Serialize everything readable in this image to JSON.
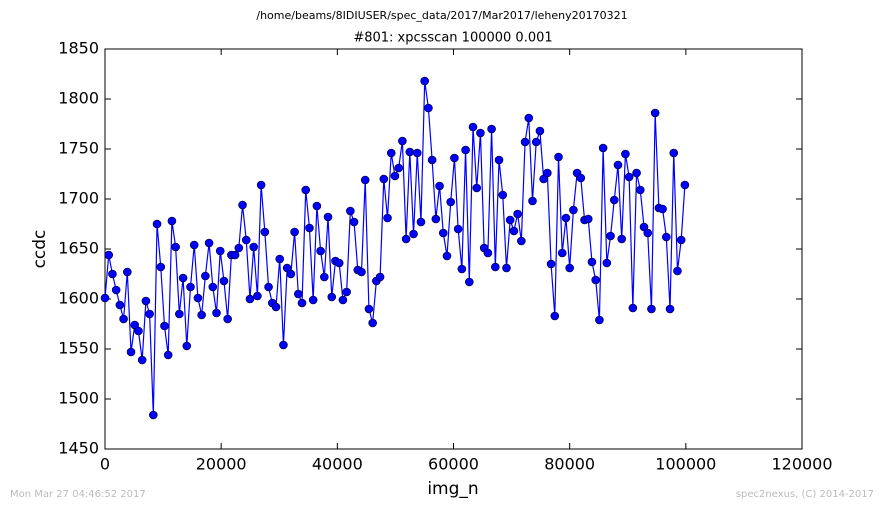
{
  "chart_data": {
    "type": "line",
    "suptitle": "/home/beams/8IDIUSER/spec_data/2017/Mar2017/leheny20170321",
    "title": "#801: xpcsscan 100000 0.001",
    "xlabel": "img_n",
    "ylabel": "ccdc",
    "footer_left": "Mon Mar 27 04:46:52 2017",
    "footer_right": "spec2nexus, (C) 2014-2017",
    "xlim": [
      0,
      120000
    ],
    "ylim": [
      1450,
      1850
    ],
    "xticks": [
      0,
      20000,
      40000,
      60000,
      80000,
      100000,
      120000
    ],
    "yticks": [
      1450,
      1500,
      1550,
      1600,
      1650,
      1700,
      1750,
      1800,
      1850
    ],
    "grid": false,
    "x": [
      0,
      640,
      1280,
      1920,
      2560,
      3200,
      3840,
      4480,
      5120,
      5760,
      6400,
      7040,
      7680,
      8320,
      8960,
      9600,
      10240,
      10880,
      11520,
      12160,
      12800,
      13440,
      14080,
      14720,
      15360,
      16000,
      16640,
      17280,
      17920,
      18560,
      19200,
      19840,
      20480,
      21120,
      21760,
      22400,
      23040,
      23680,
      24320,
      24960,
      25600,
      26240,
      26880,
      27520,
      28160,
      28800,
      29440,
      30080,
      30720,
      31360,
      32000,
      32640,
      33280,
      33920,
      34560,
      35200,
      35840,
      36480,
      37120,
      37760,
      38400,
      39040,
      39680,
      40320,
      40960,
      41600,
      42240,
      42880,
      43520,
      44160,
      44800,
      45440,
      46080,
      46720,
      47360,
      48000,
      48640,
      49280,
      49920,
      50560,
      51200,
      51840,
      52480,
      53120,
      53760,
      54400,
      55040,
      55680,
      56320,
      56960,
      57600,
      58240,
      58880,
      59520,
      60160,
      60800,
      61440,
      62080,
      62720,
      63360,
      64000,
      64640,
      65280,
      65920,
      66560,
      67200,
      67840,
      68480,
      69120,
      69760,
      70400,
      71040,
      71680,
      72320,
      72960,
      73600,
      74240,
      74880,
      75520,
      76160,
      76800,
      77440,
      78080,
      78720,
      79360,
      80000,
      80640,
      81280,
      81920,
      82560,
      83200,
      83840,
      84480,
      85120,
      85760,
      86400,
      87040,
      87680,
      88320,
      88960,
      89600,
      90240,
      90880,
      91520,
      92160,
      92800,
      93440,
      94080,
      94720,
      95360,
      96000,
      96640,
      97280,
      97920,
      98560,
      99200,
      99840
    ],
    "series": [
      {
        "name": "ccdc",
        "color": "#0000ff",
        "values": [
          1601,
          1644,
          1625,
          1609,
          1594,
          1580,
          1627,
          1547,
          1574,
          1568,
          1539,
          1598,
          1585,
          1484,
          1675,
          1632,
          1573,
          1544,
          1678,
          1652,
          1585,
          1621,
          1553,
          1612,
          1654,
          1601,
          1584,
          1623,
          1656,
          1612,
          1586,
          1648,
          1618,
          1580,
          1644,
          1644,
          1651,
          1694,
          1659,
          1600,
          1652,
          1603,
          1714,
          1667,
          1612,
          1596,
          1592,
          1640,
          1554,
          1631,
          1625,
          1667,
          1605,
          1596,
          1709,
          1671,
          1599,
          1693,
          1648,
          1622,
          1682,
          1602,
          1638,
          1636,
          1599,
          1607,
          1688,
          1677,
          1629,
          1627,
          1719,
          1590,
          1576,
          1618,
          1622,
          1720,
          1681,
          1746,
          1723,
          1731,
          1758,
          1660,
          1747,
          1665,
          1746,
          1677,
          1818,
          1791,
          1739,
          1680,
          1713,
          1666,
          1643,
          1697,
          1741,
          1670,
          1630,
          1749,
          1617,
          1772,
          1711,
          1766,
          1651,
          1646,
          1770,
          1632,
          1739,
          1704,
          1631,
          1679,
          1668,
          1685,
          1658,
          1757,
          1781,
          1698,
          1757,
          1768,
          1720,
          1726,
          1635,
          1583,
          1742,
          1646,
          1681,
          1631,
          1689,
          1726,
          1721,
          1679,
          1680,
          1637,
          1619,
          1579,
          1751,
          1636,
          1663,
          1699,
          1734,
          1660,
          1745,
          1722,
          1591,
          1726,
          1709,
          1672,
          1666,
          1590,
          1786,
          1691,
          1690,
          1662,
          1590,
          1746,
          1628,
          1659,
          1714
        ]
      }
    ]
  }
}
